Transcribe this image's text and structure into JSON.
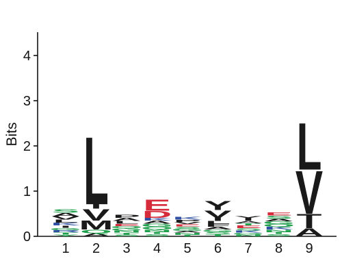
{
  "chart_data": {
    "type": "sequence-logo",
    "title": "",
    "xlabel": "",
    "ylabel": "Bits",
    "ylim": [
      0,
      4.5
    ],
    "yticks": [
      "0",
      "1",
      "2",
      "3",
      "4"
    ],
    "positions": [
      "1",
      "2",
      "3",
      "4",
      "5",
      "6",
      "7",
      "8",
      "9"
    ],
    "colors": {
      "hydrophobic": "#1a1a1a",
      "acidic": "#d62b3b",
      "polar": "#1f9e4c",
      "basic": "#2e4fa3",
      "other": "#7a5bd0"
    },
    "stacks": [
      [
        {
          "letter": "Y",
          "bits": 0.04,
          "color": "#1f9e4c"
        },
        {
          "letter": "T",
          "bits": 0.05,
          "color": "#1f9e4c"
        },
        {
          "letter": "R",
          "bits": 0.05,
          "color": "#2e4fa3"
        },
        {
          "letter": "G",
          "bits": 0.05,
          "color": "#1f9e4c"
        },
        {
          "letter": "I",
          "bits": 0.05,
          "color": "#1a1a1a"
        },
        {
          "letter": "K",
          "bits": 0.06,
          "color": "#2e4fa3"
        },
        {
          "letter": "L",
          "bits": 0.07,
          "color": "#1a1a1a"
        },
        {
          "letter": "V",
          "bits": 0.07,
          "color": "#1a1a1a"
        },
        {
          "letter": "A",
          "bits": 0.08,
          "color": "#1a1a1a"
        },
        {
          "letter": "S",
          "bits": 0.08,
          "color": "#1f9e4c"
        }
      ],
      [
        {
          "letter": "A",
          "bits": 0.07,
          "color": "#1a1a1a"
        },
        {
          "letter": "Q",
          "bits": 0.08,
          "color": "#1f9e4c"
        },
        {
          "letter": "M",
          "bits": 0.2,
          "color": "#1a1a1a"
        },
        {
          "letter": "V",
          "bits": 0.26,
          "color": "#1a1a1a"
        },
        {
          "letter": "I",
          "bits": 0.1,
          "color": "#1a1a1a"
        },
        {
          "letter": "L",
          "bits": 1.53,
          "color": "#1a1a1a"
        }
      ],
      [
        {
          "letter": "S",
          "bits": 0.04,
          "color": "#1f9e4c"
        },
        {
          "letter": "T",
          "bits": 0.04,
          "color": "#1f9e4c"
        },
        {
          "letter": "N",
          "bits": 0.05,
          "color": "#1f9e4c"
        },
        {
          "letter": "G",
          "bits": 0.05,
          "color": "#1f9e4c"
        },
        {
          "letter": "Q",
          "bits": 0.05,
          "color": "#1f9e4c"
        },
        {
          "letter": "E",
          "bits": 0.05,
          "color": "#d62b3b"
        },
        {
          "letter": "L",
          "bits": 0.06,
          "color": "#1a1a1a"
        },
        {
          "letter": "A",
          "bits": 0.07,
          "color": "#1a1a1a"
        },
        {
          "letter": "P",
          "bits": 0.07,
          "color": "#1a1a1a"
        }
      ],
      [
        {
          "letter": "S",
          "bits": 0.05,
          "color": "#1f9e4c"
        },
        {
          "letter": "T",
          "bits": 0.05,
          "color": "#1f9e4c"
        },
        {
          "letter": "N",
          "bits": 0.05,
          "color": "#1f9e4c"
        },
        {
          "letter": "Q",
          "bits": 0.06,
          "color": "#1f9e4c"
        },
        {
          "letter": "G",
          "bits": 0.07,
          "color": "#1f9e4c"
        },
        {
          "letter": "A",
          "bits": 0.07,
          "color": "#1a1a1a"
        },
        {
          "letter": "K",
          "bits": 0.06,
          "color": "#2e4fa3"
        },
        {
          "letter": "D",
          "bits": 0.16,
          "color": "#d62b3b"
        },
        {
          "letter": "E",
          "bits": 0.25,
          "color": "#d62b3b"
        }
      ],
      [
        {
          "letter": "T",
          "bits": 0.04,
          "color": "#1f9e4c"
        },
        {
          "letter": "N",
          "bits": 0.04,
          "color": "#1f9e4c"
        },
        {
          "letter": "A",
          "bits": 0.04,
          "color": "#1a1a1a"
        },
        {
          "letter": "G",
          "bits": 0.05,
          "color": "#1f9e4c"
        },
        {
          "letter": "S",
          "bits": 0.05,
          "color": "#1f9e4c"
        },
        {
          "letter": "E",
          "bits": 0.05,
          "color": "#d62b3b"
        },
        {
          "letter": "V",
          "bits": 0.05,
          "color": "#1a1a1a"
        },
        {
          "letter": "P",
          "bits": 0.05,
          "color": "#1a1a1a"
        },
        {
          "letter": "K",
          "bits": 0.06,
          "color": "#2e4fa3"
        }
      ],
      [
        {
          "letter": "T",
          "bits": 0.05,
          "color": "#1f9e4c"
        },
        {
          "letter": "S",
          "bits": 0.05,
          "color": "#1f9e4c"
        },
        {
          "letter": "G",
          "bits": 0.05,
          "color": "#1f9e4c"
        },
        {
          "letter": "A",
          "bits": 0.06,
          "color": "#1a1a1a"
        },
        {
          "letter": "F",
          "bits": 0.06,
          "color": "#1a1a1a"
        },
        {
          "letter": "L",
          "bits": 0.07,
          "color": "#1a1a1a"
        },
        {
          "letter": "I",
          "bits": 0.08,
          "color": "#1a1a1a"
        },
        {
          "letter": "V",
          "bits": 0.16,
          "color": "#1a1a1a"
        },
        {
          "letter": "Y",
          "bits": 0.2,
          "color": "#1a1a1a"
        }
      ],
      [
        {
          "letter": "N",
          "bits": 0.04,
          "color": "#1f9e4c"
        },
        {
          "letter": "G",
          "bits": 0.04,
          "color": "#1f9e4c"
        },
        {
          "letter": "K",
          "bits": 0.05,
          "color": "#2e4fa3"
        },
        {
          "letter": "S",
          "bits": 0.05,
          "color": "#1f9e4c"
        },
        {
          "letter": "E",
          "bits": 0.06,
          "color": "#d62b3b"
        },
        {
          "letter": "T",
          "bits": 0.05,
          "color": "#1f9e4c"
        },
        {
          "letter": "A",
          "bits": 0.05,
          "color": "#1a1a1a"
        },
        {
          "letter": "I",
          "bits": 0.05,
          "color": "#1a1a1a"
        },
        {
          "letter": "Y",
          "bits": 0.06,
          "color": "#1a1a1a"
        }
      ],
      [
        {
          "letter": "S",
          "bits": 0.05,
          "color": "#1f9e4c"
        },
        {
          "letter": "T",
          "bits": 0.05,
          "color": "#1f9e4c"
        },
        {
          "letter": "N",
          "bits": 0.05,
          "color": "#1f9e4c"
        },
        {
          "letter": "K",
          "bits": 0.06,
          "color": "#2e4fa3"
        },
        {
          "letter": "Q",
          "bits": 0.06,
          "color": "#1f9e4c"
        },
        {
          "letter": "G",
          "bits": 0.06,
          "color": "#1f9e4c"
        },
        {
          "letter": "A",
          "bits": 0.06,
          "color": "#1a1a1a"
        },
        {
          "letter": "S",
          "bits": 0.07,
          "color": "#1f9e4c"
        },
        {
          "letter": "E",
          "bits": 0.07,
          "color": "#d62b3b"
        }
      ],
      [
        {
          "letter": "A",
          "bits": 0.18,
          "color": "#1a1a1a"
        },
        {
          "letter": "I",
          "bits": 0.1,
          "color": "#1a1a1a"
        },
        {
          "letter": "T",
          "bits": 0.22,
          "color": "#1a1a1a"
        },
        {
          "letter": "V",
          "bits": 0.98,
          "color": "#1a1a1a"
        },
        {
          "letter": "L",
          "bits": 1.06,
          "color": "#1a1a1a"
        }
      ]
    ]
  }
}
